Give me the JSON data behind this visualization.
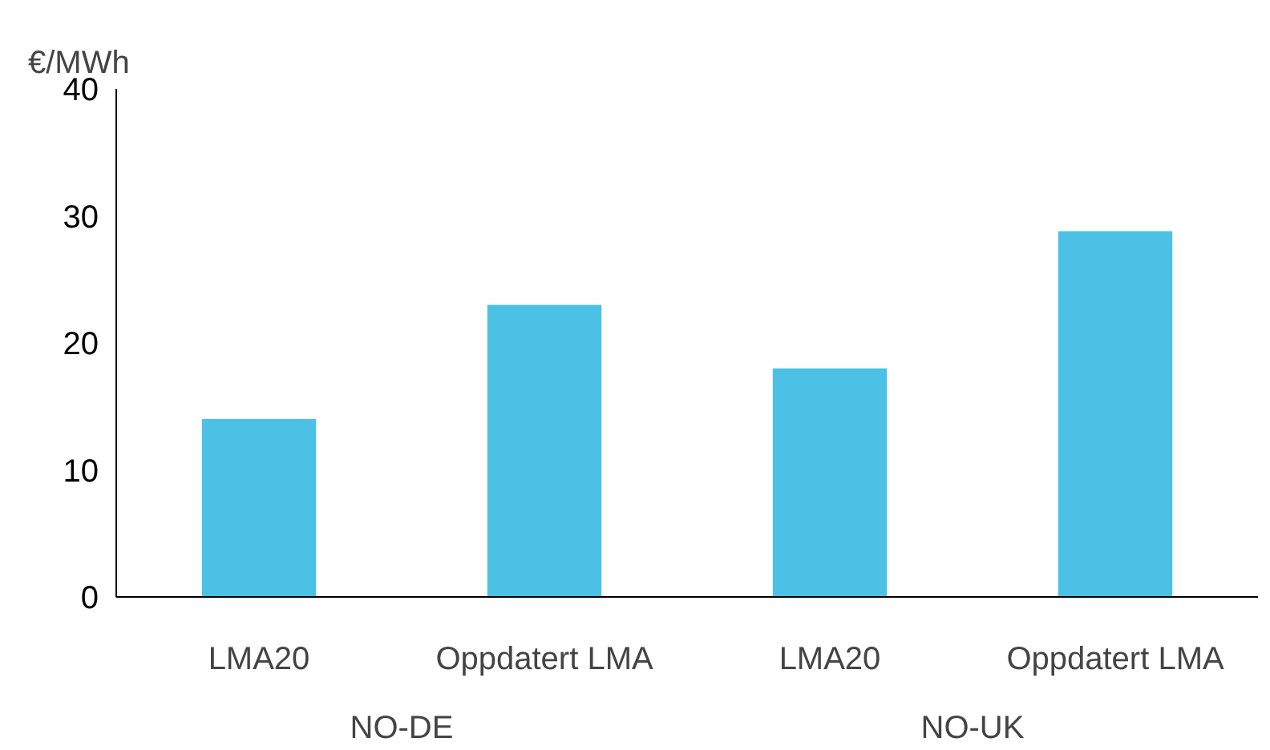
{
  "chart_data": {
    "type": "bar",
    "ylabel": "€/MWh",
    "categories": [
      "LMA20",
      "Oppdatert LMA",
      "LMA20",
      "Oppdatert LMA"
    ],
    "values": [
      14,
      23,
      18,
      28.8
    ],
    "color": "#4cc1e6",
    "ylim": [
      0,
      40
    ],
    "yticks": [
      0,
      10,
      20,
      30,
      40
    ],
    "grid": false,
    "annotations": [
      "NO-DE",
      "NO-UK"
    ]
  }
}
